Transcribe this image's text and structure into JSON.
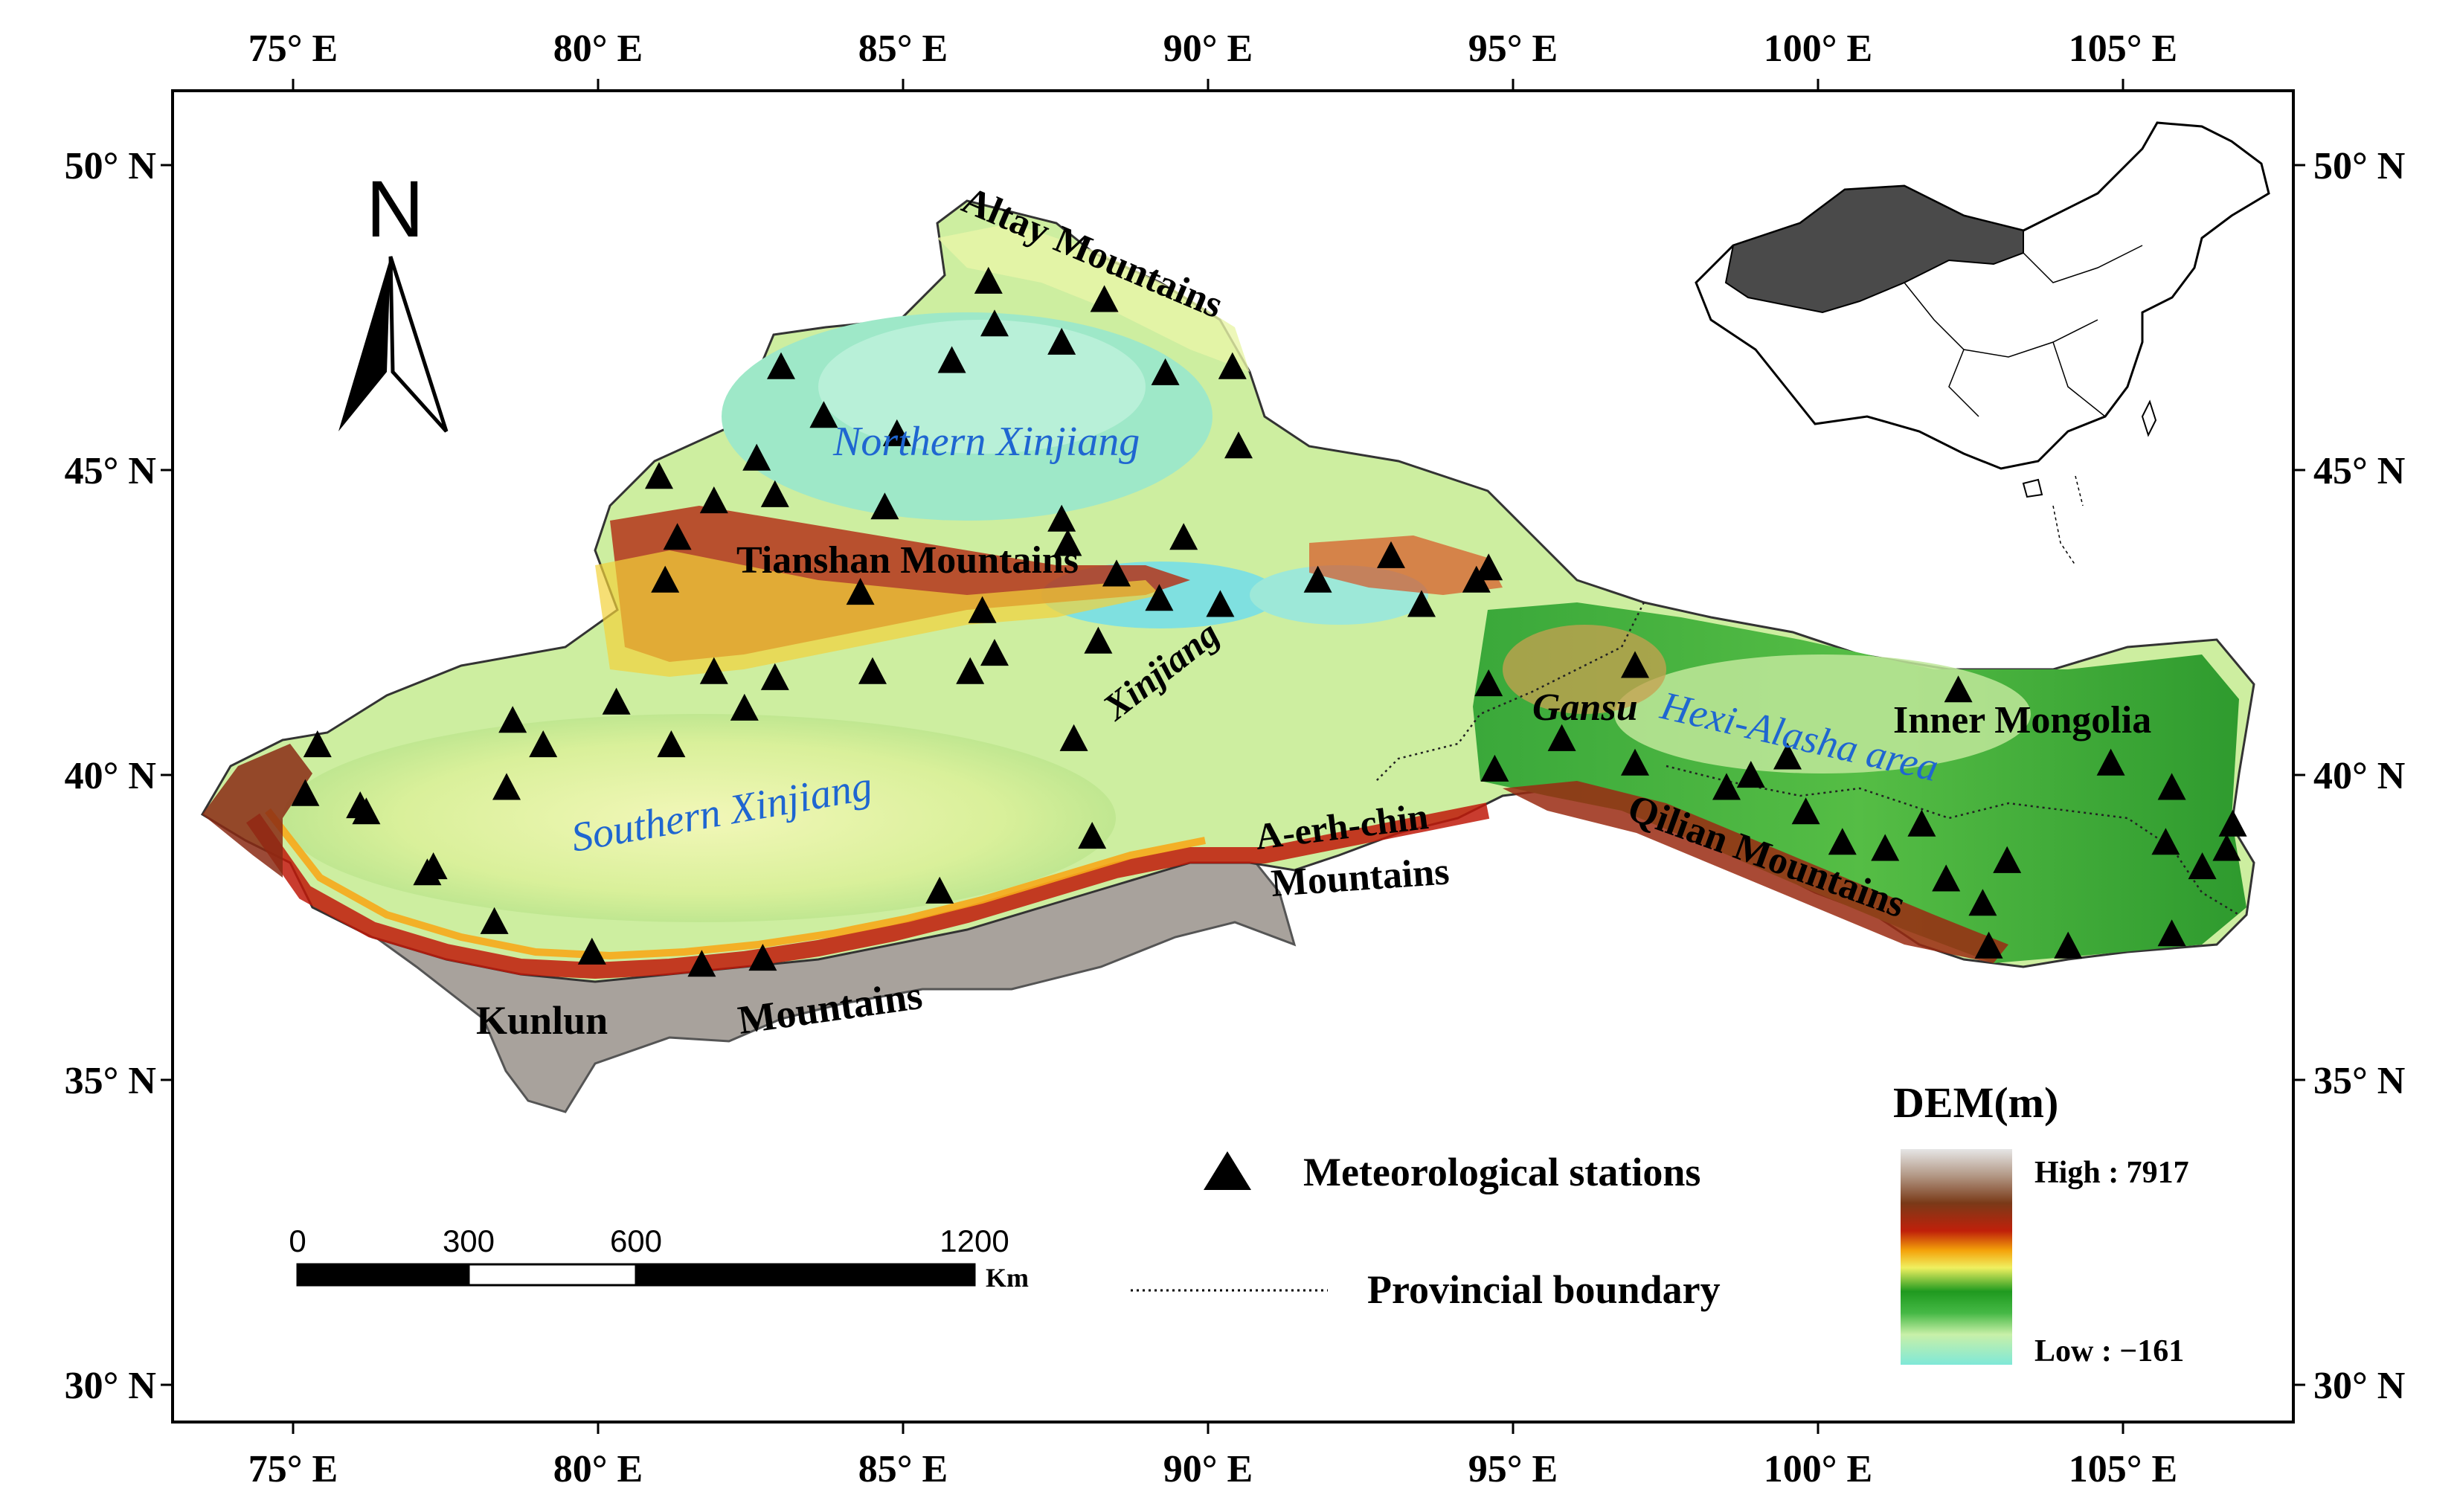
{
  "map": {
    "axes": {
      "longitude_ticks": [
        "75° E",
        "80° E",
        "85° E",
        "90° E",
        "95° E",
        "100° E",
        "105° E"
      ],
      "latitude_ticks": [
        "50° N",
        "45° N",
        "40° N",
        "35° N",
        "30° N"
      ],
      "lon_range": [
        73,
        108
      ],
      "lat_range": [
        29.3,
        51.5
      ]
    },
    "north_arrow": {
      "label": "N"
    },
    "region_labels": [
      {
        "text": "Northern Xinjiang",
        "style": "region"
      },
      {
        "text": "Southern Xinjiang",
        "style": "region"
      },
      {
        "text": "Hexi-Alasha area",
        "style": "region"
      }
    ],
    "feature_labels": [
      {
        "text": "Altay Mountains"
      },
      {
        "text": "Tianshan Mountains"
      },
      {
        "text": "Xinjiang"
      },
      {
        "text": "Gansu"
      },
      {
        "text": "Inner Mongolia"
      },
      {
        "text": "A-erh-chin"
      },
      {
        "text": "Mountains"
      },
      {
        "text": "Qilian Mountains"
      },
      {
        "text": "Kunlun"
      },
      {
        "text": "Mountains"
      }
    ],
    "stations": [
      [
        75.2,
        39.7
      ],
      [
        75.4,
        40.5
      ],
      [
        76.1,
        39.5
      ],
      [
        76.2,
        39.4
      ],
      [
        77.2,
        38.4
      ],
      [
        77.3,
        38.5
      ],
      [
        78.3,
        37.6
      ],
      [
        78.5,
        39.8
      ],
      [
        78.6,
        40.9
      ],
      [
        79.1,
        40.5
      ],
      [
        79.9,
        37.1
      ],
      [
        80.3,
        41.2
      ],
      [
        81.2,
        40.5
      ],
      [
        81.3,
        43.9
      ],
      [
        81.1,
        43.2
      ],
      [
        81.0,
        44.9
      ],
      [
        81.7,
        36.9
      ],
      [
        81.9,
        41.7
      ],
      [
        81.9,
        44.5
      ],
      [
        82.4,
        41.1
      ],
      [
        82.7,
        37.0
      ],
      [
        82.9,
        41.6
      ],
      [
        82.6,
        45.2
      ],
      [
        82.9,
        44.6
      ],
      [
        83.0,
        46.7
      ],
      [
        83.7,
        45.9
      ],
      [
        84.3,
        43.0
      ],
      [
        84.5,
        41.7
      ],
      [
        84.7,
        44.4
      ],
      [
        84.9,
        45.6
      ],
      [
        85.6,
        38.1
      ],
      [
        85.8,
        46.8
      ],
      [
        86.1,
        41.7
      ],
      [
        86.3,
        42.7
      ],
      [
        86.4,
        48.1
      ],
      [
        86.5,
        42.0
      ],
      [
        86.5,
        47.4
      ],
      [
        87.6,
        44.2
      ],
      [
        87.6,
        47.1
      ],
      [
        87.7,
        43.8
      ],
      [
        87.8,
        40.6
      ],
      [
        88.1,
        39.0
      ],
      [
        88.2,
        42.2
      ],
      [
        88.3,
        47.8
      ],
      [
        88.5,
        43.3
      ],
      [
        89.2,
        42.9
      ],
      [
        89.3,
        46.6
      ],
      [
        89.6,
        43.9
      ],
      [
        90.2,
        42.8
      ],
      [
        90.4,
        46.7
      ],
      [
        90.5,
        45.4
      ],
      [
        91.8,
        43.2
      ],
      [
        93.0,
        43.6
      ],
      [
        93.5,
        42.8
      ],
      [
        94.4,
        43.2
      ],
      [
        94.6,
        43.4
      ],
      [
        94.6,
        41.5
      ],
      [
        94.7,
        40.1
      ],
      [
        95.8,
        40.6
      ],
      [
        97.0,
        41.8
      ],
      [
        97.0,
        40.2
      ],
      [
        98.5,
        39.8
      ],
      [
        98.9,
        40.0
      ],
      [
        99.5,
        40.3
      ],
      [
        99.8,
        39.4
      ],
      [
        100.4,
        38.9
      ],
      [
        101.1,
        38.8
      ],
      [
        101.7,
        39.2
      ],
      [
        102.3,
        41.4
      ],
      [
        102.1,
        38.3
      ],
      [
        102.7,
        37.9
      ],
      [
        102.8,
        37.2
      ],
      [
        103.1,
        38.6
      ],
      [
        104.1,
        37.2
      ],
      [
        104.8,
        40.2
      ],
      [
        105.8,
        39.8
      ],
      [
        105.7,
        38.9
      ],
      [
        105.8,
        37.4
      ],
      [
        106.3,
        38.5
      ],
      [
        106.8,
        39.2
      ],
      [
        106.7,
        38.8
      ]
    ],
    "legend": {
      "station_label": "Meteorological stations",
      "boundary_label": "Provincial boundary",
      "dem_title": "DEM(m)",
      "dem_high": "High : 7917",
      "dem_low": "Low : −161",
      "dem_colors": [
        "#d6d6d6",
        "#8a5a3f",
        "#6e2a10",
        "#c81e0a",
        "#f4a20a",
        "#f6f260",
        "#1f9a1f",
        "#1fa31f",
        "#8fe08f",
        "#c8f0a8",
        "#6fe6d0"
      ]
    },
    "scale_bar": {
      "ticks": [
        "0",
        "300",
        "600",
        "1200"
      ],
      "unit": "Km"
    },
    "colors": {
      "study_area_low": "#d8f4a0",
      "study_area_mid": "#37b337",
      "mountain_red": "#b42010",
      "high_plateau": "#a8a8a8",
      "inset_fill": "#4a4a4a",
      "frame": "#000000"
    }
  }
}
